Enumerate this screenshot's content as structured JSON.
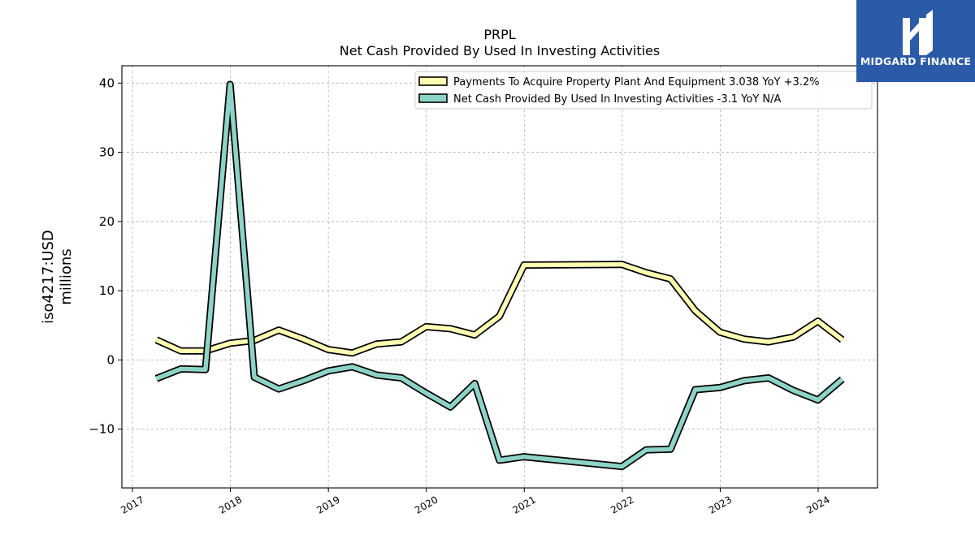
{
  "chart_data": {
    "type": "line",
    "title": "PRPL",
    "subtitle": "Net Cash Provided By Used In Investing Activities",
    "ylabel": [
      "iso4217:USD",
      "millions"
    ],
    "xlabel": "",
    "ylim": [
      -18.5,
      42.5
    ],
    "xlim": [
      2016.96,
      2024.6
    ],
    "yticks": [
      -10,
      0,
      10,
      20,
      30,
      40
    ],
    "ytick_labels": [
      "−10",
      "0",
      "10",
      "20",
      "30",
      "40"
    ],
    "xticks": [
      2017,
      2018,
      2019,
      2020,
      2021,
      2022,
      2023,
      2024
    ],
    "xtick_labels": [
      "2017",
      "2018",
      "2019",
      "2020",
      "2021",
      "2022",
      "2023",
      "2024"
    ],
    "grid": true,
    "legend_position": "top-right",
    "series": [
      {
        "name": "Payments To Acquire Property Plant And Equipment  3.038 YoY +3.2%",
        "color": "#ffffb3",
        "x": [
          "2017-03-31",
          "2017-06-30",
          "2017-09-30",
          "2017-12-31",
          "2018-03-31",
          "2018-06-30",
          "2018-09-30",
          "2018-12-31",
          "2019-03-31",
          "2019-06-30",
          "2019-09-30",
          "2019-12-31",
          "2020-03-31",
          "2020-06-30",
          "2020-09-30",
          "2020-12-31",
          "2021-12-31",
          "2022-03-31",
          "2022-06-30",
          "2022-09-30",
          "2022-12-31",
          "2023-03-31",
          "2023-06-30",
          "2023-09-30",
          "2023-12-31",
          "2024-03-31"
        ],
        "values": [
          2.9,
          1.3,
          1.3,
          2.4,
          2.8,
          4.3,
          3.0,
          1.5,
          1.0,
          2.3,
          2.6,
          4.8,
          4.5,
          3.6,
          6.3,
          13.7,
          13.8,
          12.6,
          11.7,
          7.1,
          4.0,
          3.0,
          2.6,
          3.3,
          5.6,
          2.9
        ]
      },
      {
        "name": "Net Cash Provided By Used In Investing Activities  -3.1 YoY N/A",
        "color": "#8dd3c7",
        "x": [
          "2017-03-31",
          "2017-06-30",
          "2017-09-30",
          "2017-12-31",
          "2018-03-31",
          "2018-06-30",
          "2018-09-30",
          "2018-12-31",
          "2019-03-31",
          "2019-06-30",
          "2019-09-30",
          "2019-12-31",
          "2020-03-31",
          "2020-06-30",
          "2020-09-30",
          "2020-12-31",
          "2021-12-31",
          "2022-03-31",
          "2022-06-30",
          "2022-09-30",
          "2022-12-31",
          "2023-03-31",
          "2023-06-30",
          "2023-09-30",
          "2023-12-31",
          "2024-03-31"
        ],
        "values": [
          -2.7,
          -1.3,
          -1.4,
          39.8,
          -2.5,
          -4.2,
          -3.0,
          -1.6,
          -1.0,
          -2.2,
          -2.6,
          -4.8,
          -6.8,
          -3.4,
          -14.5,
          -14.0,
          -15.4,
          -13.0,
          -12.9,
          -4.3,
          -4.0,
          -3.0,
          -2.6,
          -4.4,
          -5.8,
          -2.8
        ]
      }
    ]
  },
  "logo": {
    "text": "MIDGARD FINANCE",
    "background": "#2b5aa8"
  }
}
